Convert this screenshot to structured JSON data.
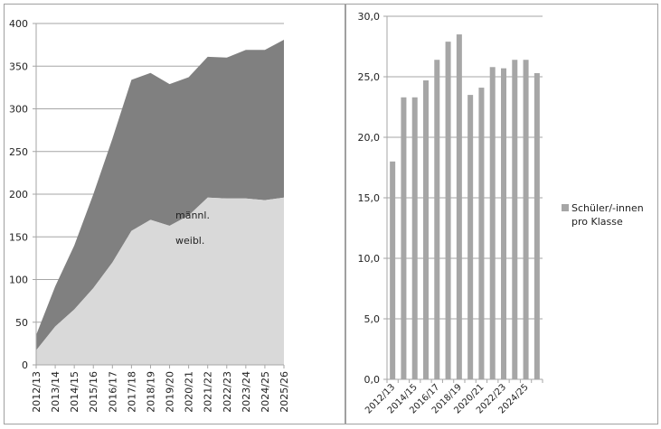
{
  "chart_data": [
    {
      "type": "area",
      "stacked": true,
      "title": "",
      "xlabel": "",
      "ylabel": "",
      "ylim": [
        0,
        400
      ],
      "yticks": [
        0,
        50,
        100,
        150,
        200,
        250,
        300,
        350,
        400
      ],
      "grid": true,
      "categories": [
        "2012/13",
        "2013/14",
        "2014/15",
        "2015/16",
        "2016/17",
        "2017/18",
        "2018/19",
        "2019/20",
        "2020/21",
        "2021/22",
        "2022/23",
        "2023/24",
        "2024/25",
        "2025/26"
      ],
      "series": [
        {
          "name": "weibl.",
          "color": "#d9d9d9",
          "values": [
            17,
            45,
            65,
            90,
            120,
            157,
            170,
            163,
            175,
            196,
            195,
            195,
            193,
            196
          ]
        },
        {
          "name": "männl.",
          "color": "#808080",
          "values": [
            18,
            47,
            75,
            110,
            145,
            177,
            172,
            166,
            162,
            165,
            165,
            174,
            176,
            185
          ]
        }
      ],
      "annotations": [
        {
          "text": "männl.",
          "x_index": 8,
          "y": 178
        },
        {
          "text": "weibl.",
          "x_index": 8,
          "y": 148
        }
      ]
    },
    {
      "type": "bar",
      "title": "",
      "xlabel": "",
      "ylabel": "",
      "ylim": [
        0,
        30
      ],
      "yticks": [
        "0,0",
        "5,0",
        "10,0",
        "15,0",
        "20,0",
        "25,0",
        "30,0"
      ],
      "grid": true,
      "legend_position": "right",
      "categories": [
        "2012/13",
        "2013/14",
        "2014/15",
        "2015/16",
        "2016/17",
        "2017/18",
        "2018/19",
        "2019/20",
        "2020/21",
        "2021/22",
        "2022/23",
        "2023/24",
        "2024/25",
        "2025/26"
      ],
      "visible_xtick_labels": [
        "2012/13",
        "2014/15",
        "2016/17",
        "2018/19",
        "2020/21",
        "2022/23",
        "2024/25"
      ],
      "series": [
        {
          "name": "Schüler/-innen pro Klasse",
          "color": "#a6a6a6",
          "values": [
            18.0,
            23.3,
            23.3,
            24.7,
            26.4,
            27.9,
            28.5,
            23.5,
            24.1,
            25.8,
            25.7,
            26.4,
            26.4,
            25.3
          ]
        }
      ]
    }
  ],
  "left_chart": {
    "label_maennl": "männl.",
    "label_weibl": "weibl."
  },
  "right_chart": {
    "legend_line1": "Schüler/-innen",
    "legend_line2": "pro Klasse"
  }
}
